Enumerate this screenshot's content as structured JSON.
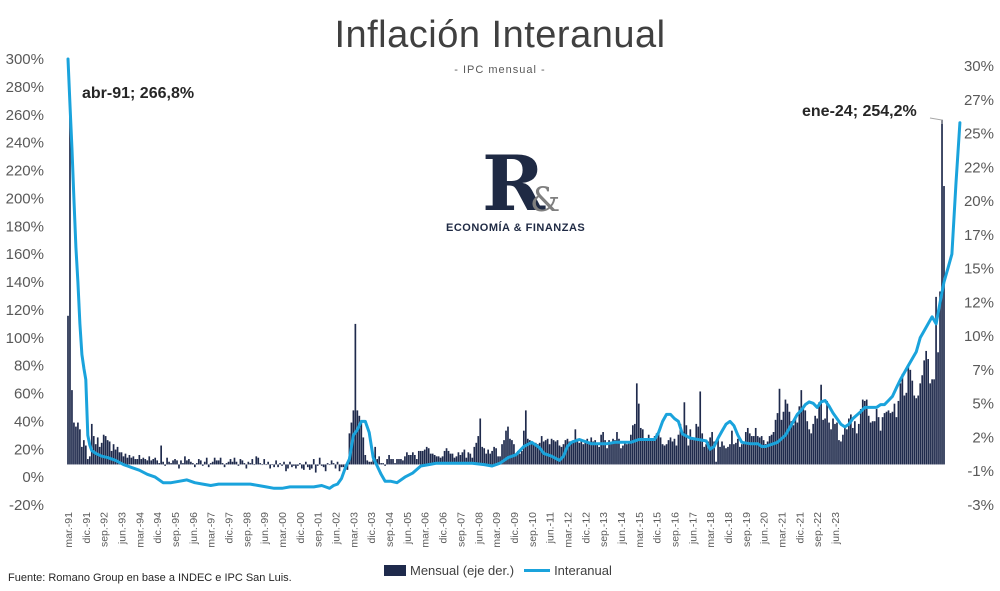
{
  "title": "Inflación Interanual",
  "subtitle": "- IPC mensual -",
  "logo": {
    "mark": "R",
    "amp": "&",
    "text": "ECONOMÍA & FINANZAS"
  },
  "source": "Fuente: Romano Group en base a INDEC e IPC San Luis.",
  "legend": {
    "bar_label": "Mensual (eje der.)",
    "line_label": "Interanual"
  },
  "colors": {
    "bars": "#1f2a4c",
    "line": "#1aa3dc",
    "axis_text": "#595959"
  },
  "chart_data": {
    "type": "bar+line",
    "title": "Inflación Interanual",
    "subtitle": "- IPC mensual -",
    "left_axis": {
      "series": "Interanual",
      "range": [
        -20,
        300
      ],
      "ticks": [
        "300%",
        "280%",
        "260%",
        "240%",
        "220%",
        "200%",
        "180%",
        "160%",
        "140%",
        "120%",
        "100%",
        "80%",
        "60%",
        "40%",
        "20%",
        "0%",
        "-20%"
      ]
    },
    "right_axis": {
      "series": "Mensual (eje der.)",
      "range": [
        -3,
        30
      ],
      "ticks": [
        "30%",
        "27%",
        "25%",
        "22%",
        "20%",
        "17%",
        "15%",
        "12%",
        "10%",
        "7%",
        "5%",
        "2%",
        "-1%",
        "-3%"
      ]
    },
    "x_tick_labels": [
      "mar.-91",
      "dic.-91",
      "sep.-92",
      "jun.-93",
      "mar.-94",
      "dic.-94",
      "sep.-95",
      "jun.-96",
      "mar.-97",
      "dic.-97",
      "sep.-98",
      "jun.-99",
      "mar.-00",
      "dic.-00",
      "sep.-01",
      "jun.-02",
      "mar.-03",
      "dic.-03",
      "sep.-04",
      "jun.-05",
      "mar.-06",
      "dic.-06",
      "sep.-07",
      "jun.-08",
      "mar.-09",
      "dic.-09",
      "sep.-10",
      "jun.-11",
      "mar.-12",
      "dic.-12",
      "sep.-13",
      "jun.-14",
      "mar.-15",
      "dic.-15",
      "sep.-16",
      "jun.-17",
      "mar.-18",
      "dic.-18",
      "sep.-19",
      "jun.-20",
      "mar.-21",
      "dic.-21",
      "sep.-22",
      "jun.-23"
    ],
    "period": {
      "start": "mar.-91",
      "end": "ene.-24",
      "frequency": "monthly"
    },
    "series": [
      {
        "name": "Interanual",
        "kind": "line",
        "axis": "left",
        "unit": "%",
        "points": [
          [
            0,
            300
          ],
          [
            1,
            266.8
          ],
          [
            2,
            235
          ],
          [
            3,
            200
          ],
          [
            4,
            165
          ],
          [
            5,
            140
          ],
          [
            6,
            110
          ],
          [
            7,
            88
          ],
          [
            8,
            78
          ],
          [
            9,
            70
          ],
          [
            10,
            30
          ],
          [
            11,
            23
          ],
          [
            12,
            19
          ],
          [
            14,
            17
          ],
          [
            17,
            15
          ],
          [
            20,
            14
          ],
          [
            24,
            12
          ],
          [
            28,
            9
          ],
          [
            32,
            7
          ],
          [
            36,
            5
          ],
          [
            40,
            2
          ],
          [
            44,
            0
          ],
          [
            48,
            -4
          ],
          [
            52,
            -4
          ],
          [
            56,
            -3
          ],
          [
            60,
            -2
          ],
          [
            64,
            -4
          ],
          [
            68,
            -5
          ],
          [
            72,
            -6
          ],
          [
            76,
            -5
          ],
          [
            80,
            -5
          ],
          [
            84,
            -5
          ],
          [
            88,
            -5
          ],
          [
            92,
            -5
          ],
          [
            96,
            -6
          ],
          [
            100,
            -7
          ],
          [
            104,
            -8
          ],
          [
            108,
            -8
          ],
          [
            112,
            -7
          ],
          [
            116,
            -7
          ],
          [
            120,
            -7
          ],
          [
            124,
            -7
          ],
          [
            128,
            -6
          ],
          [
            130,
            -7
          ],
          [
            132,
            -8
          ],
          [
            134,
            -6
          ],
          [
            136,
            -5
          ],
          [
            138,
            -1
          ],
          [
            140,
            7
          ],
          [
            142,
            13
          ],
          [
            144,
            30
          ],
          [
            146,
            34
          ],
          [
            148,
            40
          ],
          [
            150,
            40
          ],
          [
            152,
            32
          ],
          [
            154,
            14
          ],
          [
            156,
            8
          ],
          [
            158,
            2
          ],
          [
            160,
            -3
          ],
          [
            163,
            -3
          ],
          [
            166,
            -4
          ],
          [
            170,
            0
          ],
          [
            174,
            3
          ],
          [
            178,
            8
          ],
          [
            182,
            9
          ],
          [
            186,
            10
          ],
          [
            192,
            10
          ],
          [
            198,
            10
          ],
          [
            204,
            10
          ],
          [
            210,
            9
          ],
          [
            214,
            8
          ],
          [
            218,
            10
          ],
          [
            222,
            14
          ],
          [
            226,
            16
          ],
          [
            230,
            22
          ],
          [
            234,
            25
          ],
          [
            238,
            21
          ],
          [
            240,
            17
          ],
          [
            244,
            15
          ],
          [
            248,
            12
          ],
          [
            250,
            15
          ],
          [
            252,
            22
          ],
          [
            254,
            25
          ],
          [
            258,
            27
          ],
          [
            262,
            25
          ],
          [
            264,
            24
          ],
          [
            268,
            24
          ],
          [
            272,
            24
          ],
          [
            276,
            25
          ],
          [
            280,
            25
          ],
          [
            284,
            25
          ],
          [
            288,
            27
          ],
          [
            292,
            27
          ],
          [
            296,
            27
          ],
          [
            298,
            32
          ],
          [
            300,
            40
          ],
          [
            302,
            45
          ],
          [
            304,
            45
          ],
          [
            306,
            42
          ],
          [
            308,
            40
          ],
          [
            310,
            31
          ],
          [
            314,
            28
          ],
          [
            318,
            27
          ],
          [
            322,
            26
          ],
          [
            324,
            20
          ],
          [
            326,
            22
          ],
          [
            328,
            28
          ],
          [
            330,
            33
          ],
          [
            332,
            38
          ],
          [
            334,
            40
          ],
          [
            336,
            37
          ],
          [
            338,
            30
          ],
          [
            340,
            25
          ],
          [
            344,
            24
          ],
          [
            348,
            24
          ],
          [
            350,
            22
          ],
          [
            352,
            22
          ],
          [
            354,
            23
          ],
          [
            356,
            24
          ],
          [
            358,
            25
          ],
          [
            362,
            30
          ],
          [
            364,
            35
          ],
          [
            366,
            40
          ],
          [
            368,
            45
          ],
          [
            370,
            48
          ],
          [
            372,
            52
          ],
          [
            374,
            54
          ],
          [
            376,
            53
          ],
          [
            378,
            50
          ],
          [
            380,
            54
          ],
          [
            382,
            55
          ],
          [
            384,
            51
          ],
          [
            386,
            46
          ],
          [
            388,
            42
          ],
          [
            390,
            38
          ],
          [
            392,
            36
          ],
          [
            394,
            38
          ],
          [
            396,
            42
          ],
          [
            400,
            47
          ],
          [
            402,
            50
          ],
          [
            404,
            50
          ],
          [
            406,
            50
          ],
          [
            408,
            50
          ],
          [
            410,
            52
          ],
          [
            412,
            52
          ],
          [
            414,
            55
          ],
          [
            416,
            58
          ],
          [
            418,
            64
          ],
          [
            420,
            70
          ],
          [
            424,
            80
          ],
          [
            428,
            90
          ],
          [
            430,
            100
          ],
          [
            432,
            105
          ],
          [
            434,
            110
          ],
          [
            436,
            115
          ],
          [
            438,
            110
          ],
          [
            440,
            125
          ],
          [
            442,
            140
          ],
          [
            444,
            150
          ],
          [
            446,
            160
          ],
          [
            448,
            210
          ],
          [
            450,
            254.2
          ]
        ]
      },
      {
        "name": "Mensual (eje der.)",
        "kind": "bar",
        "axis": "right",
        "unit": "%",
        "values": [
          11.0,
          27.0,
          5.5,
          3.1,
          2.8,
          3.1,
          2.6,
          1.3,
          1.8,
          1.4,
          0.4,
          0.6,
          3.0,
          2.1,
          1.5,
          2.0,
          1.3,
          1.6,
          2.2,
          2.1,
          1.8,
          1.7,
          1.0,
          1.5,
          1.1,
          1.3,
          0.9,
          0.9,
          0.6,
          0.8,
          0.5,
          0.7,
          0.5,
          0.6,
          0.4,
          0.4,
          0.7,
          0.4,
          0.5,
          0.4,
          0.3,
          0.6,
          0.3,
          0.4,
          0.5,
          0.3,
          0.1,
          1.4,
          0.2,
          -0.1,
          0.5,
          0.2,
          0.1,
          0.3,
          0.4,
          0.3,
          -0.3,
          0.3,
          0.1,
          0.6,
          0.3,
          0.4,
          0.2,
          0.1,
          -0.2,
          0.1,
          0.4,
          0.3,
          -0.1,
          0.2,
          0.5,
          -0.2,
          0.1,
          0.2,
          0.5,
          0.3,
          0.3,
          0.5,
          0.1,
          -0.2,
          0.1,
          0.2,
          0.4,
          0.2,
          0.5,
          0.2,
          -0.1,
          0.4,
          0.3,
          0.1,
          -0.3,
          0.2,
          0.1,
          0.4,
          0.0,
          0.6,
          0.5,
          0.1,
          0.0,
          0.4,
          0.0,
          0.2,
          -0.3,
          0.0,
          -0.2,
          0.3,
          -0.2,
          0.1,
          -0.1,
          0.2,
          -0.5,
          -0.3,
          0.2,
          -0.2,
          -0.1,
          -0.3,
          -0.1,
          0.1,
          -0.3,
          -0.4,
          0.2,
          -0.2,
          -0.4,
          -0.3,
          0.4,
          -0.6,
          -0.1,
          0.5,
          -0.1,
          -0.2,
          -0.5,
          0.1,
          0.0,
          0.3,
          0.1,
          -0.3,
          0.2,
          -0.5,
          -0.2,
          -0.2,
          0.0,
          -0.4,
          2.3,
          3.1,
          4.0,
          10.4,
          4.0,
          3.6,
          3.2,
          2.0,
          0.7,
          0.3,
          0.2,
          0.2,
          0.6,
          1.3,
          0.4,
          0.6,
          0.1,
          0.1,
          -0.1,
          0.4,
          0.7,
          0.4,
          0.4,
          0.1,
          0.4,
          0.4,
          0.4,
          0.3,
          0.6,
          0.9,
          0.7,
          0.7,
          0.9,
          0.7,
          0.4,
          1.0,
          1.0,
          1.0,
          1.1,
          1.3,
          1.2,
          0.8,
          0.8,
          0.7,
          0.6,
          0.6,
          0.5,
          0.6,
          1.0,
          1.2,
          1.0,
          0.8,
          0.8,
          0.5,
          0.6,
          0.9,
          0.7,
          0.9,
          1.1,
          0.5,
          0.9,
          0.8,
          0.5,
          1.3,
          1.6,
          2.1,
          3.4,
          1.3,
          1.2,
          0.8,
          1.1,
          0.8,
          1.0,
          1.3,
          1.2,
          0.6,
          0.6,
          1.5,
          1.8,
          2.5,
          2.8,
          1.9,
          1.8,
          1.5,
          0.8,
          1.0,
          0.8,
          1.0,
          2.5,
          4.0,
          1.9,
          1.8,
          1.5,
          1.6,
          1.6,
          1.5,
          1.6,
          2.1,
          1.7,
          1.8,
          1.9,
          1.5,
          1.9,
          1.8,
          1.7,
          1.8,
          1.4,
          1.3,
          1.5,
          1.8,
          1.9,
          1.7,
          1.6,
          1.8,
          2.6,
          1.9,
          1.6,
          1.8,
          1.5,
          1.6,
          1.9,
          1.7,
          2.0,
          1.7,
          1.8,
          1.6,
          1.3,
          2.2,
          2.4,
          1.8,
          1.2,
          1.8,
          1.6,
          1.9,
          1.8,
          2.4,
          1.9,
          1.2,
          1.4,
          1.6,
          1.5,
          1.7,
          2.2,
          2.9,
          3.0,
          6.0,
          4.5,
          2.7,
          2.6,
          1.8,
          1.8,
          2.2,
          1.9,
          1.9,
          2.1,
          2.3,
          2.5,
          2.0,
          1.5,
          1.4,
          1.5,
          1.8,
          2.0,
          1.7,
          1.9,
          1.4,
          2.2,
          3.0,
          2.3,
          4.6,
          2.9,
          1.4,
          2.6,
          2.0,
          1.8,
          3.0,
          2.8,
          5.4,
          2.3,
          1.3,
          1.5,
          1.7,
          2.0,
          2.4,
          1.7,
          0.2,
          1.9,
          1.3,
          1.7,
          1.4,
          1.2,
          1.3,
          1.5,
          2.5,
          1.5,
          1.6,
          1.9,
          1.3,
          1.5,
          1.6,
          2.4,
          2.7,
          2.3,
          2.1,
          2.1,
          2.7,
          2.1,
          2.0,
          2.1,
          1.8,
          1.5,
          1.7,
          2.1,
          2.2,
          2.4,
          3.3,
          3.8,
          5.6,
          3.3,
          3.9,
          4.8,
          4.5,
          3.9,
          3.2,
          2.9,
          3.4,
          3.1,
          4.3,
          5.5,
          4.1,
          4.0,
          3.2,
          2.6,
          2.3,
          3.0,
          3.6,
          3.4,
          4.6,
          5.9,
          3.3,
          3.4,
          4.7,
          3.1,
          2.6,
          3.4,
          3.0,
          3.1,
          1.8,
          1.7,
          2.2,
          2.7,
          2.6,
          3.4,
          3.7,
          2.7,
          3.2,
          2.3,
          3.0,
          4.1,
          4.8,
          4.7,
          4.8,
          3.6,
          3.1,
          3.2,
          3.2,
          4.1,
          3.5,
          2.5,
          3.5,
          3.8,
          3.9,
          4.0,
          3.8,
          3.9,
          4.5,
          3.5,
          4.7,
          6.0,
          6.7,
          5.1,
          5.3,
          7.4,
          7.0,
          6.2,
          5.1,
          4.9,
          5.1,
          6.0,
          6.6,
          7.7,
          8.4,
          7.8,
          6.0,
          6.3,
          6.3,
          12.4,
          8.3,
          12.8,
          25.5,
          20.6
        ]
      }
    ],
    "annotations": [
      {
        "text": "abr-91; 266,8%",
        "series": "Interanual",
        "x_label": "abr.-91",
        "value": 266.8
      },
      {
        "text": "ene-24; 254,2%",
        "series": "Interanual",
        "x_label": "ene.-24",
        "value": 254.2
      }
    ]
  }
}
